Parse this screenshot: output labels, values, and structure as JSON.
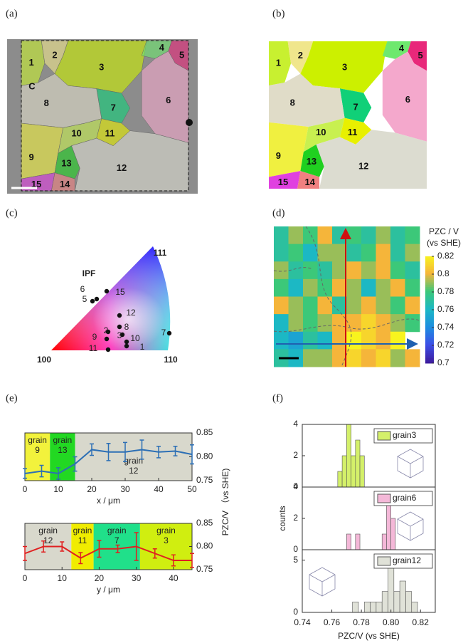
{
  "chart_data": [
    {
      "type": "grain-map",
      "panel": "(a)",
      "style": "overlay",
      "marker": "C",
      "grain_labels": [
        "1",
        "2",
        "3",
        "4",
        "5",
        "6",
        "7",
        "8",
        "9",
        "10",
        "11",
        "12",
        "13",
        "14",
        "15"
      ],
      "colors": [
        "#c8f030",
        "#f0e68c",
        "#ccf000",
        "#6ee86e",
        "#e8287a",
        "#f4a8cc",
        "#10d078",
        "#e0dcc8",
        "#f0f040",
        "#c8f050",
        "#e8f000",
        "#dcdcd0",
        "#20d020",
        "#f08080",
        "#e040e0"
      ]
    },
    {
      "type": "grain-map",
      "panel": "(b)",
      "style": "solid",
      "grain_labels": [
        "1",
        "2",
        "3",
        "4",
        "5",
        "6",
        "7",
        "8",
        "9",
        "10",
        "11",
        "12",
        "13",
        "14",
        "15"
      ],
      "colors": [
        "#c8f030",
        "#f0e68c",
        "#ccf000",
        "#6ee86e",
        "#e8287a",
        "#f4a8cc",
        "#10d078",
        "#e0dcc8",
        "#f0f040",
        "#c8f050",
        "#e8f000",
        "#dcdcd0",
        "#20d020",
        "#f08080",
        "#e040e0"
      ]
    },
    {
      "type": "ipf",
      "panel": "(c)",
      "title": "IPF",
      "corners": [
        "100",
        "110",
        "111"
      ],
      "points": [
        "15",
        "6",
        "5",
        "12",
        "8",
        "2",
        "3",
        "9",
        "10",
        "11",
        "1",
        "7"
      ]
    },
    {
      "type": "heatmap",
      "panel": "(d)",
      "colorbar_title": [
        "PZC / V",
        "(vs SHE)"
      ],
      "clim": [
        0.7,
        0.82
      ],
      "cticks": [
        0.7,
        0.72,
        0.74,
        0.76,
        0.78,
        0.8,
        0.82
      ],
      "colormap": [
        "#3d1c9e",
        "#3c4ee6",
        "#1d8ee0",
        "#1cb8c4",
        "#3cc879",
        "#f5b53a",
        "#f8f41e"
      ],
      "values": [
        [
          0.77,
          0.79,
          0.78,
          0.8,
          0.77,
          0.78,
          0.77,
          0.79,
          0.77,
          0.78
        ],
        [
          0.77,
          0.78,
          0.76,
          0.79,
          0.79,
          0.77,
          0.78,
          0.8,
          0.77,
          0.79
        ],
        [
          0.79,
          0.77,
          0.78,
          0.77,
          0.79,
          0.8,
          0.79,
          0.8,
          0.78,
          0.77
        ],
        [
          0.78,
          0.76,
          0.79,
          0.78,
          0.8,
          0.79,
          0.76,
          0.79,
          0.8,
          0.78
        ],
        [
          0.8,
          0.79,
          0.78,
          0.8,
          0.77,
          0.79,
          0.8,
          0.79,
          0.78,
          0.8
        ],
        [
          0.76,
          0.79,
          0.78,
          0.79,
          0.8,
          0.8,
          0.81,
          0.8,
          0.79,
          0.78
        ],
        [
          0.76,
          0.75,
          0.77,
          0.76,
          0.8,
          0.82,
          0.81,
          0.8,
          0.82,
          null
        ],
        [
          0.77,
          0.76,
          0.79,
          0.79,
          0.8,
          0.81,
          0.8,
          0.81,
          0.79,
          0.8
        ]
      ]
    },
    {
      "type": "line",
      "panel": "(e)",
      "color": "#2c6fb5",
      "x": [
        0,
        5,
        10,
        15,
        20,
        25,
        30,
        35,
        40,
        45,
        50
      ],
      "values": [
        0.765,
        0.77,
        0.765,
        0.785,
        0.815,
        0.81,
        0.81,
        0.815,
        0.81,
        0.812,
        0.805
      ],
      "errors": [
        0.01,
        0.012,
        0.012,
        0.015,
        0.012,
        0.018,
        0.02,
        0.02,
        0.012,
        0.01,
        0.02
      ],
      "xlim": [
        0,
        50
      ],
      "xticks": [
        0,
        10,
        20,
        30,
        40,
        50
      ],
      "ylim": [
        0.75,
        0.85
      ],
      "yticks": [
        0.75,
        {
          "value": 0.8,
          "label": "0.80"
        },
        0.85
      ],
      "xlabel": "x / μm",
      "ylabel": "PZC/V （vs SHE)",
      "regions": [
        {
          "label": [
            "grain",
            "9"
          ],
          "from": 0,
          "to": 7.5,
          "color": "#f2f23c"
        },
        {
          "label": [
            "grain",
            "13"
          ],
          "from": 7.5,
          "to": 15,
          "color": "#22d822"
        },
        {
          "label": [
            "grain",
            "12"
          ],
          "from": 15,
          "to": 50,
          "color": "#d8d8cc"
        }
      ]
    },
    {
      "type": "line",
      "color": "#e02020",
      "x": [
        0,
        5,
        10,
        15,
        20,
        25,
        30,
        35,
        40,
        45
      ],
      "values": [
        0.785,
        0.8,
        0.8,
        0.775,
        0.795,
        0.795,
        0.8,
        0.785,
        0.77,
        0.77
      ],
      "errors": [
        0.015,
        0.012,
        0.01,
        0.012,
        0.018,
        0.008,
        0.03,
        0.01,
        0.012,
        0.015
      ],
      "xlim": [
        0,
        45
      ],
      "xticks": [
        0,
        10,
        20,
        30,
        40
      ],
      "ylim": [
        0.75,
        0.85
      ],
      "yticks": [
        0.75,
        {
          "value": 0.8,
          "label": "0.80"
        },
        0.85
      ],
      "xlabel": "y / μm",
      "regions": [
        {
          "label": [
            "grain",
            "12"
          ],
          "from": 0,
          "to": 12.5,
          "color": "#d8d8cc"
        },
        {
          "label": [
            "grain",
            "11"
          ],
          "from": 12.5,
          "to": 18.5,
          "color": "#f0ec00"
        },
        {
          "label": [
            "grain",
            "7"
          ],
          "from": 18.5,
          "to": 31,
          "color": "#20e08a"
        },
        {
          "label": [
            "grain",
            "3"
          ],
          "from": 31,
          "to": 45,
          "color": "#d0ee10"
        }
      ]
    },
    {
      "type": "histogram",
      "panel": "(f)",
      "bins": [
        0.764,
        0.767,
        0.77,
        0.773,
        0.776,
        0.779,
        0.782
      ],
      "series": [
        {
          "name": "grain3",
          "color": "#d4f06a",
          "counts": [
            1,
            2,
            4,
            2,
            3,
            2
          ]
        }
      ],
      "xlim": [
        0.74,
        0.83
      ],
      "ylim": [
        0,
        4
      ],
      "yticks": [
        0,
        2,
        4
      ]
    },
    {
      "type": "histogram",
      "bins": [
        0.77,
        0.773,
        0.776,
        0.779,
        0.782,
        0.785,
        0.788,
        0.791,
        0.794,
        0.797,
        0.8,
        0.803
      ],
      "series": [
        {
          "name": "grain6",
          "color": "#f4b8d8",
          "counts": [
            1,
            0,
            1,
            0,
            0,
            0,
            0,
            0,
            1,
            3,
            2
          ]
        }
      ],
      "xlim": [
        0.74,
        0.83
      ],
      "ylim": [
        0,
        4
      ],
      "yticks": [
        0,
        2,
        4
      ],
      "ylabel": "counts"
    },
    {
      "type": "histogram",
      "bins": [
        0.774,
        0.778,
        0.782,
        0.786,
        0.79,
        0.794,
        0.798,
        0.802,
        0.806,
        0.81,
        0.814,
        0.818
      ],
      "series": [
        {
          "name": "grain12",
          "color": "#e0e2d8",
          "counts": [
            1,
            0,
            1,
            1,
            1,
            2,
            5,
            2,
            3,
            2,
            1
          ]
        }
      ],
      "xlim": [
        0.74,
        0.83
      ],
      "ylim": [
        0,
        6
      ],
      "yticks": [
        0,
        5
      ],
      "xticks": [
        0.74,
        0.76,
        0.78,
        {
          "value": 0.8,
          "label": "0.80"
        },
        0.82
      ],
      "xlabel": "PZC/V (vs SHE)"
    }
  ]
}
